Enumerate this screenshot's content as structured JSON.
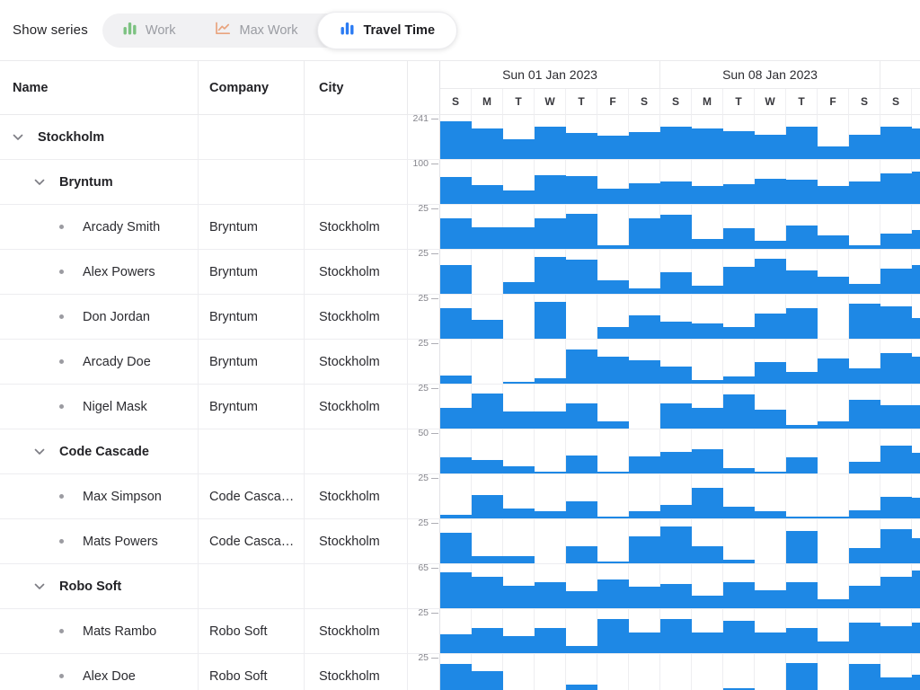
{
  "toolbar": {
    "label": "Show series",
    "buttons": [
      {
        "id": "work",
        "label": "Work",
        "icon": "bar-chart-icon",
        "color": "#7cc281",
        "active": false
      },
      {
        "id": "max-work",
        "label": "Max Work",
        "icon": "line-chart-icon",
        "color": "#e9a47e",
        "active": false
      },
      {
        "id": "travel-time",
        "label": "Travel Time",
        "icon": "bar-chart-icon",
        "color": "#2b7bf3",
        "active": true
      }
    ]
  },
  "grid": {
    "columns": [
      {
        "label": "Name"
      },
      {
        "label": "Company"
      },
      {
        "label": "City"
      }
    ],
    "rows": [
      {
        "type": "group",
        "level": 0,
        "name": "Stockholm",
        "company": "",
        "city": "",
        "scale": 241,
        "values": [
          215,
          174,
          113,
          185,
          149,
          133,
          154,
          185,
          174,
          159,
          138,
          185,
          72,
          138,
          185,
          174
        ]
      },
      {
        "type": "group",
        "level": 1,
        "name": "Bryntum",
        "company": "",
        "city": "",
        "scale": 100,
        "values": [
          64,
          45,
          32,
          68,
          66,
          36,
          49,
          53,
          43,
          47,
          60,
          57,
          43,
          53,
          72,
          77
        ]
      },
      {
        "type": "leaf",
        "level": 2,
        "name": "Arcady Smith",
        "company": "Bryntum",
        "city": "Stockholm",
        "scale": 25,
        "values": [
          18,
          13,
          13,
          18,
          21,
          2,
          18,
          20,
          6,
          12,
          5,
          14,
          8,
          2,
          9,
          11
        ]
      },
      {
        "type": "leaf",
        "level": 2,
        "name": "Alex Powers",
        "company": "Bryntum",
        "city": "Stockholm",
        "scale": 25,
        "values": [
          17,
          0,
          7,
          22,
          20,
          8,
          3,
          13,
          5,
          16,
          21,
          14,
          10,
          6,
          15,
          17
        ]
      },
      {
        "type": "leaf",
        "level": 2,
        "name": "Don Jordan",
        "company": "Bryntum",
        "city": "Stockholm",
        "scale": 25,
        "values": [
          18,
          11,
          0,
          22,
          0,
          7,
          14,
          10,
          9,
          7,
          15,
          18,
          0,
          21,
          19,
          12
        ]
      },
      {
        "type": "leaf",
        "level": 2,
        "name": "Arcady Doe",
        "company": "Bryntum",
        "city": "Stockholm",
        "scale": 25,
        "values": [
          5,
          0,
          1,
          3,
          20,
          16,
          14,
          10,
          2,
          4,
          13,
          7,
          15,
          9,
          18,
          16
        ]
      },
      {
        "type": "leaf",
        "level": 2,
        "name": "Nigel Mask",
        "company": "Bryntum",
        "city": "Stockholm",
        "scale": 25,
        "values": [
          12,
          21,
          10,
          10,
          15,
          4,
          0,
          15,
          12,
          20,
          11,
          2,
          4,
          17,
          14,
          14
        ]
      },
      {
        "type": "group",
        "level": 1,
        "name": "Code Cascade",
        "company": "",
        "city": "",
        "scale": 50,
        "values": [
          19,
          16,
          9,
          2,
          21,
          2,
          20,
          26,
          29,
          6,
          2,
          19,
          0,
          14,
          33,
          24
        ]
      },
      {
        "type": "leaf",
        "level": 2,
        "name": "Max Simpson",
        "company": "Code Cascade",
        "city": "Stockholm",
        "scale": 25,
        "values": [
          2,
          14,
          6,
          4,
          10,
          1,
          4,
          8,
          18,
          7,
          4,
          1,
          1,
          5,
          13,
          12
        ]
      },
      {
        "type": "leaf",
        "level": 2,
        "name": "Mats Powers",
        "company": "Code Cascade",
        "city": "Stockholm",
        "scale": 25,
        "values": [
          18,
          4,
          4,
          0,
          10,
          1,
          16,
          22,
          10,
          2,
          0,
          19,
          0,
          9,
          20,
          15
        ]
      },
      {
        "type": "group",
        "level": 1,
        "name": "Robo Soft",
        "company": "",
        "city": "",
        "scale": 65,
        "values": [
          55,
          48,
          35,
          40,
          26,
          44,
          33,
          37,
          20,
          40,
          27,
          40,
          14,
          35,
          48,
          58
        ]
      },
      {
        "type": "leaf",
        "level": 2,
        "name": "Mats Rambo",
        "company": "Robo Soft",
        "city": "Stockholm",
        "scale": 25,
        "values": [
          11,
          15,
          10,
          15,
          4,
          20,
          12,
          20,
          12,
          19,
          12,
          15,
          7,
          18,
          16,
          18
        ]
      },
      {
        "type": "leaf",
        "level": 2,
        "name": "Alex Doe",
        "company": "Robo Soft",
        "city": "Stockholm",
        "scale": 25,
        "values": [
          20,
          16,
          2,
          5,
          8,
          5,
          1,
          5,
          2,
          6,
          1,
          21,
          1,
          20,
          12,
          14
        ]
      }
    ]
  },
  "timeline": {
    "weeks": [
      {
        "label": "Sun 01 Jan 2023",
        "days": 7
      },
      {
        "label": "Sun 08 Jan 2023",
        "days": 7
      },
      {
        "label": "",
        "days": 2
      }
    ],
    "day_letters": [
      "S",
      "M",
      "T",
      "W",
      "T",
      "F",
      "S",
      "S",
      "M",
      "T",
      "W",
      "T",
      "F",
      "S",
      "S",
      ""
    ]
  },
  "colors": {
    "bar": "#1e88e5",
    "work_icon": "#7cc281",
    "max_work_icon": "#e9a47e",
    "travel_time_icon": "#2b7bf3",
    "grid_border": "#eaeaec",
    "tick_text": "#85858c"
  }
}
